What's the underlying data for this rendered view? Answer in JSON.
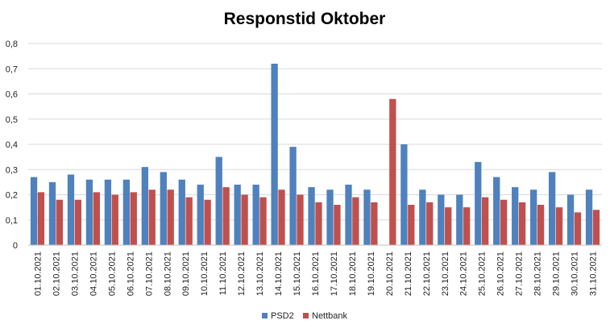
{
  "chart_data": {
    "type": "bar",
    "title": "Responstid Oktober",
    "xlabel": "",
    "ylabel": "",
    "ylim": [
      0,
      0.8
    ],
    "yticks": [
      {
        "value": 0,
        "label": "0"
      },
      {
        "value": 0.1,
        "label": "0,1"
      },
      {
        "value": 0.2,
        "label": "0,2"
      },
      {
        "value": 0.3,
        "label": "0,3"
      },
      {
        "value": 0.4,
        "label": "0,4"
      },
      {
        "value": 0.5,
        "label": "0,5"
      },
      {
        "value": 0.6,
        "label": "0,6"
      },
      {
        "value": 0.7,
        "label": "0,7"
      },
      {
        "value": 0.8,
        "label": "0,8"
      }
    ],
    "grid": true,
    "legend_position": "bottom",
    "categories": [
      "01.10.2021",
      "02.10.2021",
      "03.10.2021",
      "04.10.2021",
      "05.10.2021",
      "06.10.2021",
      "07.10.2021",
      "08.10.2021",
      "09.10.2021",
      "10.10.2021",
      "11.10.2021",
      "12.10.2021",
      "13.10.2021",
      "14.10.2021",
      "15.10.2021",
      "16.10.2021",
      "17.10.2021",
      "18.10.2021",
      "19.10.2021",
      "20.10.2021",
      "21.10.2021",
      "22.10.2021",
      "23.10.2021",
      "24.10.2021",
      "25.10.2021",
      "26.10.2021",
      "27.10.2021",
      "28.10.2021",
      "29.10.2021",
      "30.10.2021",
      "31.10.2021"
    ],
    "series": [
      {
        "name": "PSD2",
        "color": "#4f81bd",
        "values": [
          0.27,
          0.25,
          0.28,
          0.26,
          0.26,
          0.26,
          0.31,
          0.29,
          0.26,
          0.24,
          0.35,
          0.24,
          0.24,
          0.72,
          0.39,
          0.23,
          0.22,
          0.24,
          0.22,
          null,
          0.4,
          0.22,
          0.2,
          0.2,
          0.33,
          0.27,
          0.23,
          0.22,
          0.29,
          0.2,
          0.22
        ]
      },
      {
        "name": "Nettbank",
        "color": "#c0504d",
        "values": [
          0.21,
          0.18,
          0.18,
          0.21,
          0.2,
          0.21,
          0.22,
          0.22,
          0.19,
          0.18,
          0.23,
          0.2,
          0.19,
          0.22,
          0.2,
          0.17,
          0.16,
          0.19,
          0.17,
          0.58,
          0.16,
          0.17,
          0.15,
          0.15,
          0.19,
          0.18,
          0.17,
          0.16,
          0.15,
          0.13,
          0.14
        ]
      }
    ]
  }
}
